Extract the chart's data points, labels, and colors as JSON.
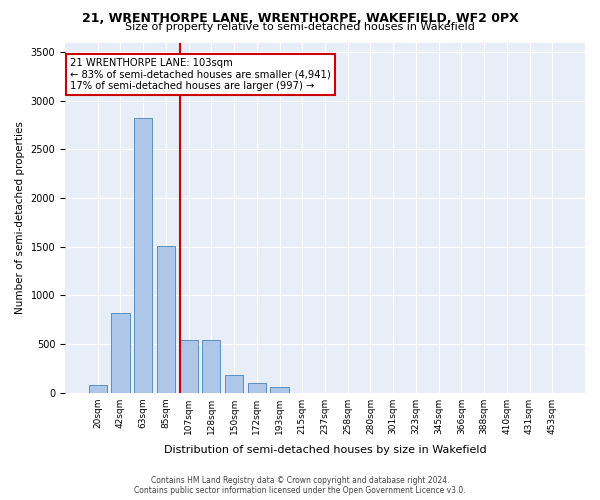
{
  "title": "21, WRENTHORPE LANE, WRENTHORPE, WAKEFIELD, WF2 0PX",
  "subtitle": "Size of property relative to semi-detached houses in Wakefield",
  "xlabel": "Distribution of semi-detached houses by size in Wakefield",
  "ylabel": "Number of semi-detached properties",
  "bins": [
    "20sqm",
    "42sqm",
    "63sqm",
    "85sqm",
    "107sqm",
    "128sqm",
    "150sqm",
    "172sqm",
    "193sqm",
    "215sqm",
    "237sqm",
    "258sqm",
    "280sqm",
    "301sqm",
    "323sqm",
    "345sqm",
    "366sqm",
    "388sqm",
    "410sqm",
    "431sqm",
    "453sqm"
  ],
  "bar_values": [
    75,
    820,
    2820,
    1510,
    540,
    540,
    185,
    100,
    60,
    0,
    0,
    0,
    0,
    0,
    0,
    0,
    0,
    0,
    0,
    0,
    0
  ],
  "bar_color": "#aec6e8",
  "bar_edge_color": "#5a8fc2",
  "vline_x_index": 4,
  "vline_color": "#cc0000",
  "annotation_text": "21 WRENTHORPE LANE: 103sqm\n← 83% of semi-detached houses are smaller (4,941)\n17% of semi-detached houses are larger (997) →",
  "annotation_box_color": "#ffffff",
  "annotation_border_color": "#cc0000",
  "ylim": [
    0,
    3600
  ],
  "yticks": [
    0,
    500,
    1000,
    1500,
    2000,
    2500,
    3000,
    3500
  ],
  "footer": "Contains HM Land Registry data © Crown copyright and database right 2024.\nContains public sector information licensed under the Open Government Licence v3.0.",
  "bg_color": "#e8eef8"
}
